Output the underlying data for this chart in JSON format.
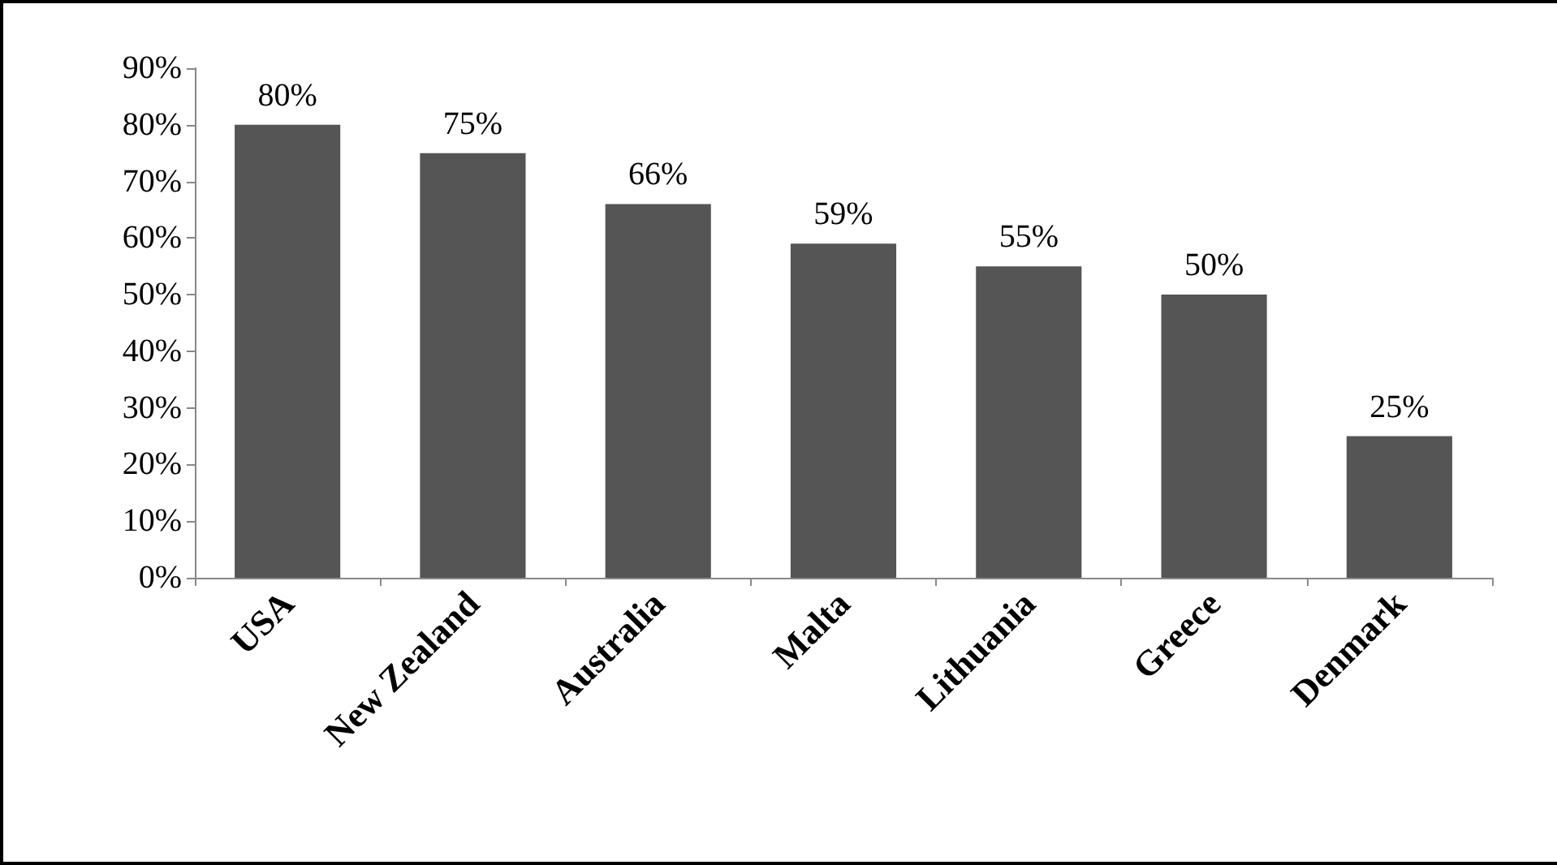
{
  "chart_data": {
    "type": "bar",
    "categories": [
      "USA",
      "New Zealand",
      "Australia",
      "Malta",
      "Lithuania",
      "Greece",
      "Denmark"
    ],
    "values": [
      80,
      75,
      66,
      59,
      55,
      50,
      25
    ],
    "value_labels": [
      "80%",
      "75%",
      "66%",
      "59%",
      "55%",
      "50%",
      "25%"
    ],
    "color": "#555555",
    "ylim": [
      0,
      90
    ],
    "yticks": [
      {
        "value": 0,
        "label": "0%"
      },
      {
        "value": 10,
        "label": "10%"
      },
      {
        "value": 20,
        "label": "20%"
      },
      {
        "value": 30,
        "label": "30%"
      },
      {
        "value": 40,
        "label": "40%"
      },
      {
        "value": 50,
        "label": "50%"
      },
      {
        "value": 60,
        "label": "60%"
      },
      {
        "value": 70,
        "label": "70%"
      },
      {
        "value": 80,
        "label": "80%"
      },
      {
        "value": 90,
        "label": "90%"
      }
    ],
    "grid": false
  }
}
